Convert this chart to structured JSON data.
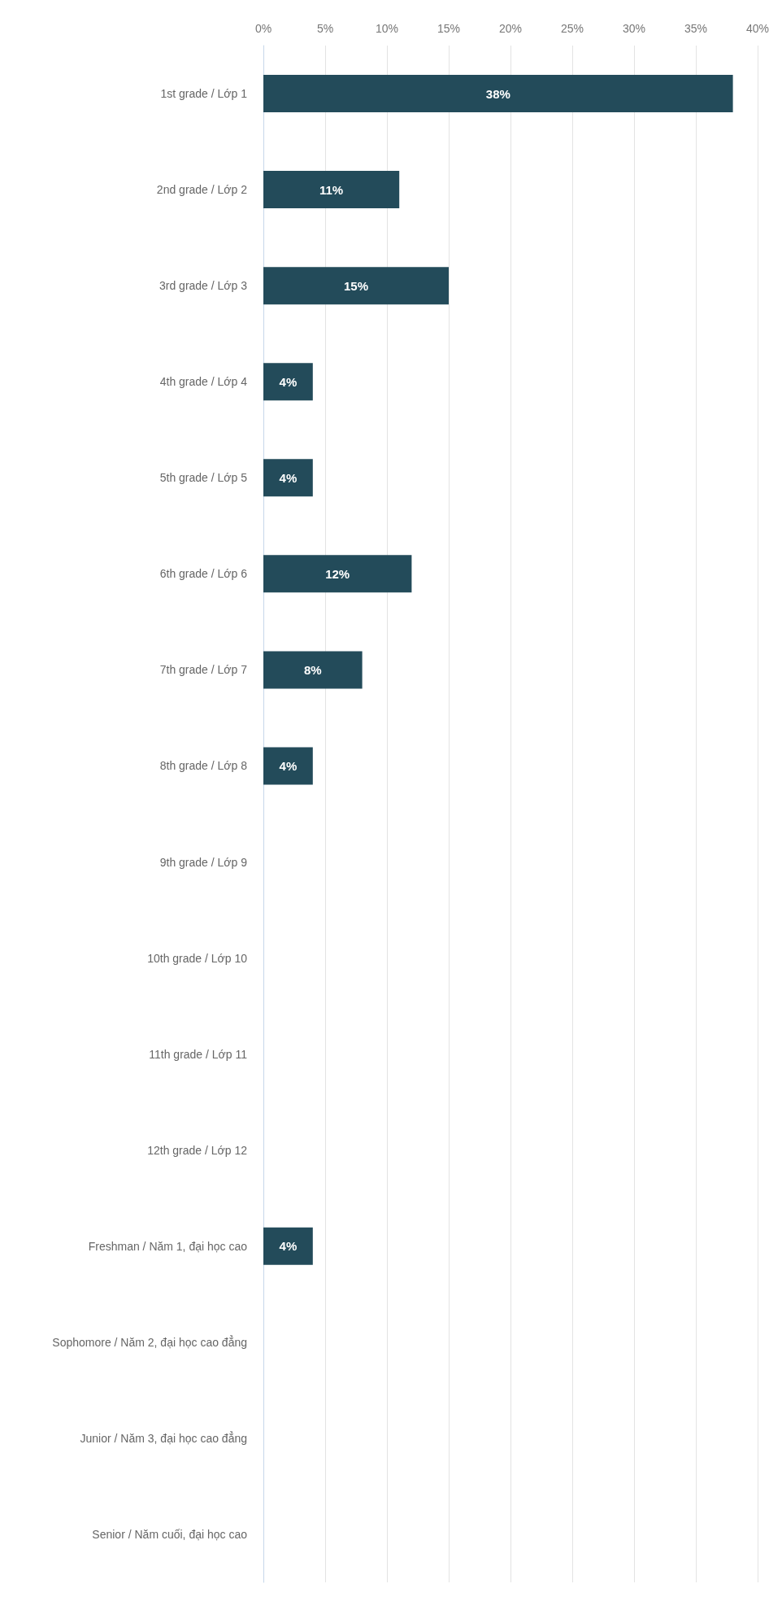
{
  "chart_data": {
    "type": "bar",
    "orientation": "horizontal",
    "categories": [
      "1st grade / Lớp 1",
      "2nd grade / Lớp 2",
      "3rd grade / Lớp 3",
      "4th grade / Lớp 4",
      "5th grade / Lớp 5",
      "6th grade / Lớp 6",
      "7th grade / Lớp 7",
      "8th grade / Lớp 8",
      "9th grade / Lớp 9",
      "10th grade / Lớp 10",
      "11th grade / Lớp 11",
      "12th grade / Lớp 12",
      "Freshman / Năm 1, đại học cao",
      "Sophomore / Năm 2, đại học cao đẳng",
      "Junior / Năm 3, đại học cao đẳng",
      "Senior / Năm cuối, đại học cao"
    ],
    "values": [
      38,
      11,
      15,
      4,
      4,
      12,
      8,
      4,
      0,
      0,
      0,
      0,
      4,
      0,
      0,
      0
    ],
    "value_labels": [
      "38%",
      "11%",
      "15%",
      "4%",
      "4%",
      "12%",
      "8%",
      "4%",
      null,
      null,
      null,
      null,
      "4%",
      null,
      null,
      null
    ],
    "color": "#234b5a",
    "xlim": [
      0,
      40
    ],
    "xticks": [
      {
        "value": 0,
        "label": "0%"
      },
      {
        "value": 5,
        "label": "5%"
      },
      {
        "value": 10,
        "label": "10%"
      },
      {
        "value": 15,
        "label": "15%"
      },
      {
        "value": 20,
        "label": "20%"
      },
      {
        "value": 25,
        "label": "25%"
      },
      {
        "value": 30,
        "label": "30%"
      },
      {
        "value": 35,
        "label": "35%"
      },
      {
        "value": 40,
        "label": "40%"
      }
    ],
    "grid": "x"
  }
}
